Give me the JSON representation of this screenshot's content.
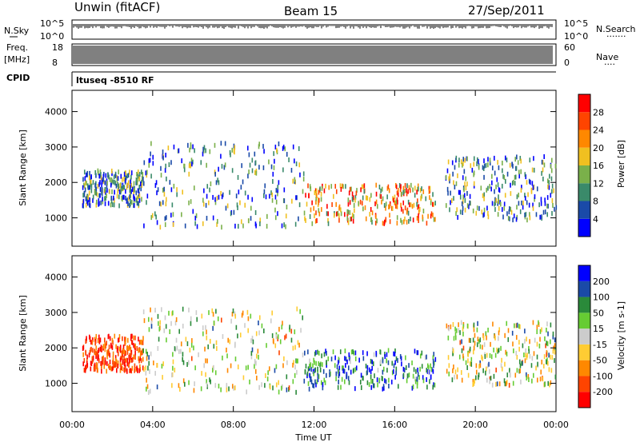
{
  "header": {
    "station": "Unwin (fitACF)",
    "beam": "Beam 15",
    "date": "27/Sep/2011"
  },
  "left_labels": {
    "nsky": "N.Sky",
    "freq": "Freq.",
    "freq_unit": "[MHz]",
    "cpid": "CPID"
  },
  "right_labels": {
    "nsearch": "N.Search",
    "nave": "Nave"
  },
  "noise_axis": {
    "top": "10^5",
    "bottom": "10^0"
  },
  "freq_axis": {
    "top": "18",
    "bottom": "8"
  },
  "nave_axis": {
    "top": "60",
    "bottom": "0"
  },
  "cpid_text": "ltuseq -8510 RF",
  "colors": {
    "power_scale": [
      "#0000ff",
      "#1a4aa8",
      "#3a8a6a",
      "#7ab04a",
      "#f0c020",
      "#ff8800",
      "#ff4400",
      "#ff0000"
    ],
    "velocity_scale": [
      "#ff0000",
      "#ff4400",
      "#ff8800",
      "#ffcc33",
      "#cccccc",
      "#66cc33",
      "#2a8a3a",
      "#1a4aa8",
      "#0000ff"
    ]
  },
  "chart_data": [
    {
      "type": "heatmap",
      "name": "power-panel",
      "ylabel": "Slant Range [km]",
      "yticks": [
        "1000",
        "2000",
        "3000",
        "4000"
      ],
      "ylim": [
        200,
        4600
      ],
      "colorbar_label": "Power [dB]",
      "colorbar_ticks": [
        "4",
        "8",
        "12",
        "16",
        "20",
        "24",
        "28"
      ],
      "clim": [
        0,
        32
      ]
    },
    {
      "type": "heatmap",
      "name": "velocity-panel",
      "ylabel": "Slant Range [km]",
      "yticks": [
        "1000",
        "2000",
        "3000",
        "4000"
      ],
      "ylim": [
        200,
        4600
      ],
      "colorbar_label": "Velocity [m s-1]",
      "colorbar_ticks": [
        "-200",
        "-100",
        "-50",
        "-15",
        "15",
        "50",
        "100",
        "200"
      ],
      "clim": [
        -250,
        250
      ]
    }
  ],
  "xaxis": {
    "label": "Time UT",
    "ticks": [
      "00:00",
      "04:00",
      "08:00",
      "12:00",
      "16:00",
      "20:00",
      "00:00"
    ]
  }
}
